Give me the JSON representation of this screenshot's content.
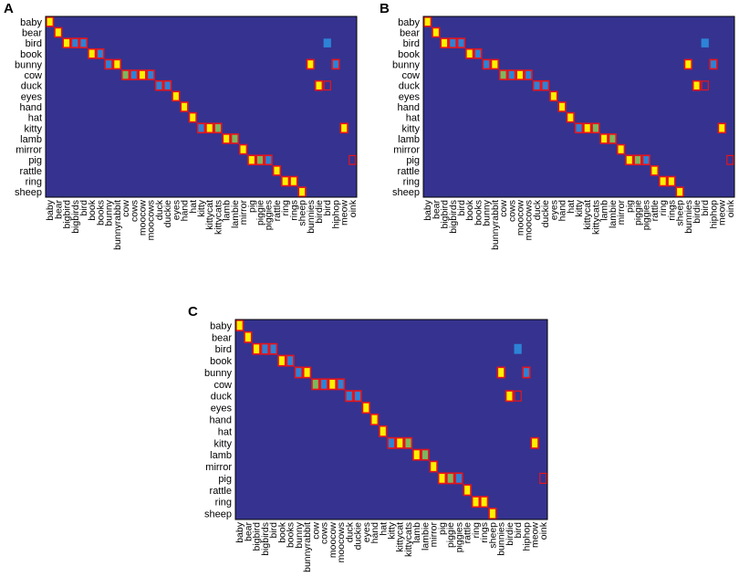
{
  "colors": {
    "background": "#35338f",
    "frame": "#000000",
    "cell_border": "#e8141c",
    "high": "#fef200",
    "mid": "#2d83d6",
    "mid_alt": "#7cb85e"
  },
  "chart_data": [
    {
      "type": "heatmap",
      "panel": "A",
      "rows": [
        "baby",
        "bear",
        "bird",
        "book",
        "bunny",
        "cow",
        "duck",
        "eyes",
        "hand",
        "hat",
        "kitty",
        "lamb",
        "mirror",
        "pig",
        "rattle",
        "ring",
        "sheep"
      ],
      "cols": [
        "baby",
        "bear",
        "bigbird",
        "bigbirds",
        "bird",
        "book",
        "books",
        "bunny",
        "bunnyrabbit",
        "cow",
        "cows",
        "moocow",
        "moocows",
        "duck",
        "duckie",
        "eyes",
        "hand",
        "hat",
        "kitty",
        "kittycat",
        "kittycats",
        "lamb",
        "lambie",
        "mirror",
        "pig",
        "piggie",
        "piggies",
        "rattle",
        "ring",
        "rings",
        "sheep",
        "bunnies",
        "birdie",
        "bird",
        "hiphop",
        "meow",
        "oink"
      ],
      "cells": [
        {
          "r": 0,
          "c": 0,
          "v": "high"
        },
        {
          "r": 1,
          "c": 1,
          "v": "high"
        },
        {
          "r": 2,
          "c": 2,
          "v": "high"
        },
        {
          "r": 2,
          "c": 3,
          "v": "mid"
        },
        {
          "r": 2,
          "c": 4,
          "v": "mid"
        },
        {
          "r": 2,
          "c": 33,
          "v": "mid",
          "unbordered": true
        },
        {
          "r": 3,
          "c": 5,
          "v": "high"
        },
        {
          "r": 3,
          "c": 6,
          "v": "mid"
        },
        {
          "r": 4,
          "c": 7,
          "v": "mid"
        },
        {
          "r": 4,
          "c": 8,
          "v": "high"
        },
        {
          "r": 4,
          "c": 31,
          "v": "high"
        },
        {
          "r": 4,
          "c": 34,
          "v": "mid"
        },
        {
          "r": 5,
          "c": 9,
          "v": "mid_alt"
        },
        {
          "r": 5,
          "c": 10,
          "v": "mid"
        },
        {
          "r": 5,
          "c": 11,
          "v": "high"
        },
        {
          "r": 5,
          "c": 12,
          "v": "mid"
        },
        {
          "r": 6,
          "c": 13,
          "v": "mid"
        },
        {
          "r": 6,
          "c": 14,
          "v": "mid"
        },
        {
          "r": 6,
          "c": 32,
          "v": "high"
        },
        {
          "r": 6,
          "c": 33,
          "v": "empty"
        },
        {
          "r": 7,
          "c": 15,
          "v": "high"
        },
        {
          "r": 8,
          "c": 16,
          "v": "high"
        },
        {
          "r": 9,
          "c": 17,
          "v": "high"
        },
        {
          "r": 10,
          "c": 18,
          "v": "mid"
        },
        {
          "r": 10,
          "c": 19,
          "v": "high"
        },
        {
          "r": 10,
          "c": 20,
          "v": "mid_alt"
        },
        {
          "r": 10,
          "c": 35,
          "v": "high"
        },
        {
          "r": 11,
          "c": 21,
          "v": "high"
        },
        {
          "r": 11,
          "c": 22,
          "v": "mid_alt"
        },
        {
          "r": 12,
          "c": 23,
          "v": "high"
        },
        {
          "r": 13,
          "c": 24,
          "v": "high"
        },
        {
          "r": 13,
          "c": 25,
          "v": "mid_alt"
        },
        {
          "r": 13,
          "c": 26,
          "v": "mid"
        },
        {
          "r": 13,
          "c": 36,
          "v": "empty"
        },
        {
          "r": 14,
          "c": 27,
          "v": "high"
        },
        {
          "r": 15,
          "c": 28,
          "v": "high"
        },
        {
          "r": 15,
          "c": 29,
          "v": "high"
        },
        {
          "r": 16,
          "c": 30,
          "v": "high"
        }
      ]
    },
    {
      "type": "heatmap",
      "panel": "B",
      "rows": [
        "baby",
        "bear",
        "bird",
        "book",
        "bunny",
        "cow",
        "duck",
        "eyes",
        "hand",
        "hat",
        "kitty",
        "lamb",
        "mirror",
        "pig",
        "rattle",
        "ring",
        "sheep"
      ],
      "cols": [
        "baby",
        "bear",
        "bigbird",
        "bigbirds",
        "bird",
        "book",
        "books",
        "bunny",
        "bunnyrabbit",
        "cow",
        "cows",
        "moocow",
        "moocows",
        "duck",
        "duckie",
        "eyes",
        "hand",
        "hat",
        "kitty",
        "kittycat",
        "kittycats",
        "lamb",
        "lambie",
        "mirror",
        "pig",
        "piggie",
        "piggies",
        "rattle",
        "ring",
        "rings",
        "sheep",
        "bunnies",
        "birdie",
        "bird",
        "hiphop",
        "meow",
        "oink"
      ],
      "cells": [
        {
          "r": 0,
          "c": 0,
          "v": "high"
        },
        {
          "r": 1,
          "c": 1,
          "v": "high"
        },
        {
          "r": 2,
          "c": 2,
          "v": "high"
        },
        {
          "r": 2,
          "c": 3,
          "v": "mid"
        },
        {
          "r": 2,
          "c": 4,
          "v": "mid"
        },
        {
          "r": 2,
          "c": 33,
          "v": "mid",
          "unbordered": true
        },
        {
          "r": 3,
          "c": 5,
          "v": "high"
        },
        {
          "r": 3,
          "c": 6,
          "v": "mid"
        },
        {
          "r": 4,
          "c": 7,
          "v": "mid"
        },
        {
          "r": 4,
          "c": 8,
          "v": "high"
        },
        {
          "r": 4,
          "c": 31,
          "v": "high"
        },
        {
          "r": 4,
          "c": 34,
          "v": "mid"
        },
        {
          "r": 5,
          "c": 9,
          "v": "mid_alt"
        },
        {
          "r": 5,
          "c": 10,
          "v": "mid"
        },
        {
          "r": 5,
          "c": 11,
          "v": "high"
        },
        {
          "r": 5,
          "c": 12,
          "v": "mid"
        },
        {
          "r": 6,
          "c": 13,
          "v": "mid"
        },
        {
          "r": 6,
          "c": 14,
          "v": "mid"
        },
        {
          "r": 6,
          "c": 32,
          "v": "high"
        },
        {
          "r": 6,
          "c": 33,
          "v": "empty"
        },
        {
          "r": 7,
          "c": 15,
          "v": "high"
        },
        {
          "r": 8,
          "c": 16,
          "v": "high"
        },
        {
          "r": 9,
          "c": 17,
          "v": "high"
        },
        {
          "r": 10,
          "c": 18,
          "v": "mid"
        },
        {
          "r": 10,
          "c": 19,
          "v": "high"
        },
        {
          "r": 10,
          "c": 20,
          "v": "mid_alt"
        },
        {
          "r": 10,
          "c": 35,
          "v": "high"
        },
        {
          "r": 11,
          "c": 21,
          "v": "high"
        },
        {
          "r": 11,
          "c": 22,
          "v": "mid_alt"
        },
        {
          "r": 12,
          "c": 23,
          "v": "high"
        },
        {
          "r": 13,
          "c": 24,
          "v": "high"
        },
        {
          "r": 13,
          "c": 25,
          "v": "mid_alt"
        },
        {
          "r": 13,
          "c": 26,
          "v": "mid"
        },
        {
          "r": 13,
          "c": 36,
          "v": "empty"
        },
        {
          "r": 14,
          "c": 27,
          "v": "high"
        },
        {
          "r": 15,
          "c": 28,
          "v": "high"
        },
        {
          "r": 15,
          "c": 29,
          "v": "high"
        },
        {
          "r": 16,
          "c": 30,
          "v": "high"
        }
      ]
    },
    {
      "type": "heatmap",
      "panel": "C",
      "rows": [
        "baby",
        "bear",
        "bird",
        "book",
        "bunny",
        "cow",
        "duck",
        "eyes",
        "hand",
        "hat",
        "kitty",
        "lamb",
        "mirror",
        "pig",
        "rattle",
        "ring",
        "sheep"
      ],
      "cols": [
        "baby",
        "bear",
        "bigbird",
        "bigbirds",
        "bird",
        "book",
        "books",
        "bunny",
        "bunnyrabbit",
        "cow",
        "cows",
        "moocow",
        "moocows",
        "duck",
        "duckie",
        "eyes",
        "hand",
        "hat",
        "kitty",
        "kittycat",
        "kittycats",
        "lamb",
        "lambie",
        "mirror",
        "pig",
        "piggie",
        "piggies",
        "rattle",
        "ring",
        "rings",
        "sheep",
        "bunnies",
        "birdie",
        "bird",
        "hiphop",
        "meow",
        "oink"
      ],
      "cells": [
        {
          "r": 0,
          "c": 0,
          "v": "high"
        },
        {
          "r": 1,
          "c": 1,
          "v": "high"
        },
        {
          "r": 2,
          "c": 2,
          "v": "high"
        },
        {
          "r": 2,
          "c": 3,
          "v": "mid"
        },
        {
          "r": 2,
          "c": 4,
          "v": "mid"
        },
        {
          "r": 2,
          "c": 33,
          "v": "mid",
          "unbordered": true
        },
        {
          "r": 3,
          "c": 5,
          "v": "high"
        },
        {
          "r": 3,
          "c": 6,
          "v": "mid"
        },
        {
          "r": 4,
          "c": 7,
          "v": "mid"
        },
        {
          "r": 4,
          "c": 8,
          "v": "high"
        },
        {
          "r": 4,
          "c": 31,
          "v": "high"
        },
        {
          "r": 4,
          "c": 34,
          "v": "mid"
        },
        {
          "r": 5,
          "c": 9,
          "v": "mid_alt"
        },
        {
          "r": 5,
          "c": 10,
          "v": "mid"
        },
        {
          "r": 5,
          "c": 11,
          "v": "high"
        },
        {
          "r": 5,
          "c": 12,
          "v": "mid"
        },
        {
          "r": 6,
          "c": 13,
          "v": "mid"
        },
        {
          "r": 6,
          "c": 14,
          "v": "mid"
        },
        {
          "r": 6,
          "c": 32,
          "v": "high"
        },
        {
          "r": 6,
          "c": 33,
          "v": "empty"
        },
        {
          "r": 7,
          "c": 15,
          "v": "high"
        },
        {
          "r": 8,
          "c": 16,
          "v": "high"
        },
        {
          "r": 9,
          "c": 17,
          "v": "high"
        },
        {
          "r": 10,
          "c": 18,
          "v": "mid"
        },
        {
          "r": 10,
          "c": 19,
          "v": "high"
        },
        {
          "r": 10,
          "c": 20,
          "v": "mid_alt"
        },
        {
          "r": 10,
          "c": 35,
          "v": "high"
        },
        {
          "r": 11,
          "c": 21,
          "v": "high"
        },
        {
          "r": 11,
          "c": 22,
          "v": "mid_alt"
        },
        {
          "r": 12,
          "c": 23,
          "v": "high"
        },
        {
          "r": 13,
          "c": 24,
          "v": "high"
        },
        {
          "r": 13,
          "c": 25,
          "v": "mid_alt"
        },
        {
          "r": 13,
          "c": 26,
          "v": "mid"
        },
        {
          "r": 13,
          "c": 36,
          "v": "empty"
        },
        {
          "r": 14,
          "c": 27,
          "v": "high"
        },
        {
          "r": 15,
          "c": 28,
          "v": "high"
        },
        {
          "r": 15,
          "c": 29,
          "v": "high"
        },
        {
          "r": 16,
          "c": 30,
          "v": "high"
        }
      ]
    }
  ]
}
